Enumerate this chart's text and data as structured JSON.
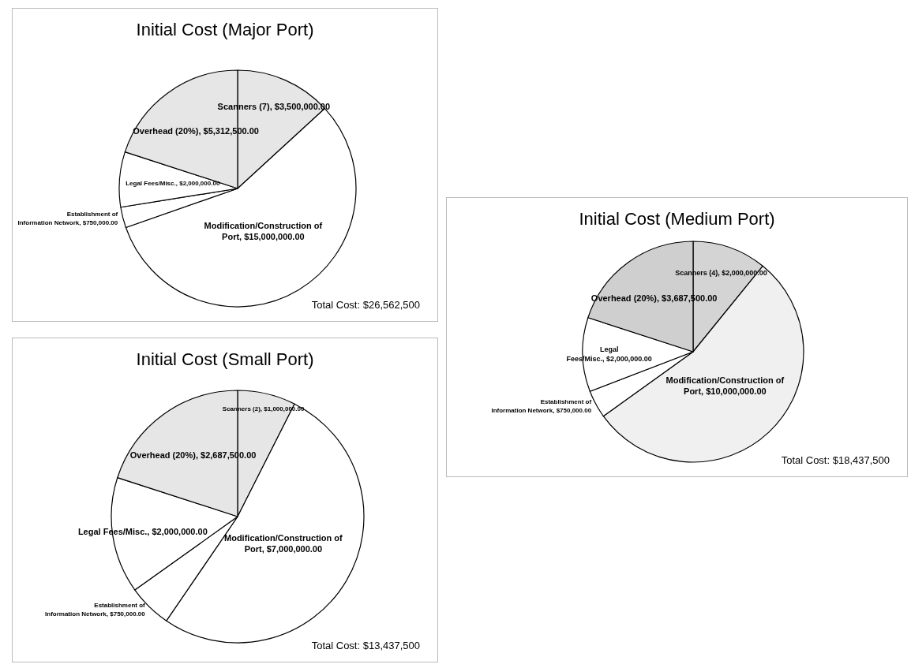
{
  "chart_data": [
    {
      "type": "pie",
      "title": "Initial Cost (Major Port)",
      "categories": [
        "Scanners (7)",
        "Modification/Construction of Port",
        "Establishment of Information Network",
        "Legal Fees/Misc.",
        "Overhead (20%)"
      ],
      "values": [
        3500000,
        15000000,
        750000,
        2000000,
        5312500
      ],
      "value_labels": [
        "$3,500,000.00",
        "$15,000,000.00",
        "$750,000.00",
        "$2,000,000.00",
        "$5,312,500.00"
      ],
      "colors": [
        "#e6e6e6",
        "#ffffff",
        "#ffffff",
        "#ffffff",
        "#e6e6e6"
      ],
      "legend": false,
      "annotations": [
        "Total Cost: $26,562,500"
      ]
    },
    {
      "type": "pie",
      "title": "Initial Cost (Medium Port)",
      "categories": [
        "Scanners (4)",
        "Modification/Construction of Port",
        "Establishment of Information Network",
        "Legal Fees/Misc.",
        "Overhead (20%)"
      ],
      "values": [
        2000000,
        10000000,
        750000,
        2000000,
        3687500
      ],
      "value_labels": [
        "$2,000,000.00",
        "$10,000,000.00",
        "$750,000.00",
        "$2,000,000.00",
        "$3,687,500.00"
      ],
      "colors": [
        "#d4d4d4",
        "#f0f0f0",
        "#ffffff",
        "#ffffff",
        "#cfcfcf"
      ],
      "legend": false,
      "annotations": [
        "Total Cost: $18,437,500"
      ]
    },
    {
      "type": "pie",
      "title": "Initial Cost (Small Port)",
      "categories": [
        "Scanners (2)",
        "Modification/Construction of Port",
        "Establishment of Information Network",
        "Legal Fees/Misc.",
        "Overhead (20%)"
      ],
      "values": [
        1000000,
        7000000,
        750000,
        2000000,
        2687500
      ],
      "value_labels": [
        "$1,000,000.00",
        "$7,000,000.00",
        "$750,000.00",
        "$2,000,000.00",
        "$2,687,500.00"
      ],
      "colors": [
        "#e6e6e6",
        "#ffffff",
        "#ffffff",
        "#ffffff",
        "#e6e6e6"
      ],
      "legend": false,
      "annotations": [
        "Total Cost: $13,437,500"
      ]
    }
  ]
}
